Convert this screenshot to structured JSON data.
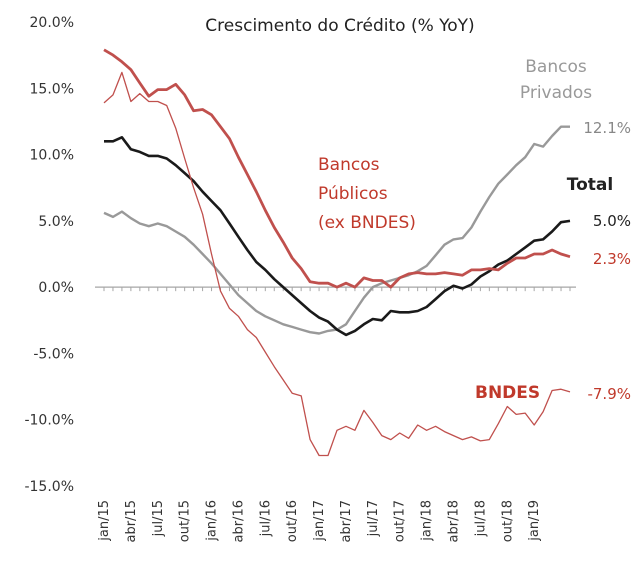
{
  "chart_data": {
    "type": "line",
    "title": "Crescimento do Crédito (% YoY)",
    "xlabel": "",
    "ylabel": "",
    "ylim": [
      -15,
      20
    ],
    "yticks": [
      20,
      15,
      10,
      5,
      0,
      -5,
      -10,
      -15
    ],
    "ytick_labels": [
      "20.0%",
      "15.0%",
      "10.0%",
      "5.0%",
      "0.0%",
      "-5.0%",
      "-10.0%",
      "-15.0%"
    ],
    "x_tick_labels": [
      "jan/15",
      "abr/15",
      "jul/15",
      "out/15",
      "jan/16",
      "abr/16",
      "jul/16",
      "out/16",
      "jan/17",
      "abr/17",
      "jul/17",
      "out/17",
      "jan/18",
      "abr/18",
      "jul/18",
      "out/18",
      "jan/19"
    ],
    "grid": false,
    "legend": "none",
    "colors": {
      "bancos_privados": "#999999",
      "total": "#1a1a1a",
      "bancos_publicos": "#c0504d",
      "bndes": "#c0504d",
      "annotation_red": "#c0392b"
    },
    "series": [
      {
        "key": "bancos_privados",
        "label_lines": [
          "Bancos",
          "Privados"
        ],
        "end_label": "12.1%",
        "values": [
          5.6,
          5.3,
          5.7,
          5.2,
          4.8,
          4.6,
          4.8,
          4.6,
          4.2,
          3.8,
          3.2,
          2.5,
          1.8,
          1.0,
          0.2,
          -0.6,
          -1.2,
          -1.8,
          -2.2,
          -2.5,
          -2.8,
          -3.0,
          -3.2,
          -3.4,
          -3.5,
          -3.3,
          -3.2,
          -2.8,
          -1.8,
          -0.8,
          0.0,
          0.3,
          0.5,
          0.7,
          0.9,
          1.2,
          1.6,
          2.4,
          3.2,
          3.6,
          3.7,
          4.5,
          5.7,
          6.8,
          7.8,
          8.5,
          9.2,
          9.8,
          10.8,
          10.6,
          11.4,
          12.1,
          12.1
        ]
      },
      {
        "key": "total",
        "label_lines": [
          "Total"
        ],
        "end_label": "5.0%",
        "values": [
          11.0,
          11.0,
          11.3,
          10.4,
          10.2,
          9.9,
          9.9,
          9.7,
          9.2,
          8.6,
          8.0,
          7.2,
          6.5,
          5.8,
          4.8,
          3.8,
          2.8,
          1.9,
          1.3,
          0.6,
          0.0,
          -0.6,
          -1.2,
          -1.8,
          -2.3,
          -2.6,
          -3.2,
          -3.6,
          -3.3,
          -2.8,
          -2.4,
          -2.5,
          -1.8,
          -1.9,
          -1.9,
          -1.8,
          -1.5,
          -0.9,
          -0.3,
          0.1,
          -0.1,
          0.2,
          0.8,
          1.2,
          1.7,
          2.0,
          2.5,
          3.0,
          3.5,
          3.6,
          4.2,
          4.9,
          5.0
        ]
      },
      {
        "key": "bancos_publicos",
        "label_lines": [
          "Bancos",
          "Públicos",
          "(ex BNDES)"
        ],
        "end_label": "2.3%",
        "values": [
          17.9,
          17.5,
          17.0,
          16.4,
          15.4,
          14.4,
          14.9,
          14.9,
          15.3,
          14.5,
          13.3,
          13.4,
          13.0,
          12.1,
          11.2,
          9.8,
          8.5,
          7.2,
          5.8,
          4.5,
          3.4,
          2.2,
          1.4,
          0.4,
          0.3,
          0.3,
          0.0,
          0.3,
          0.0,
          0.7,
          0.5,
          0.5,
          0.0,
          0.7,
          1.0,
          1.1,
          1.0,
          1.0,
          1.1,
          1.0,
          0.9,
          1.3,
          1.3,
          1.4,
          1.3,
          1.8,
          2.2,
          2.2,
          2.5,
          2.5,
          2.8,
          2.5,
          2.3
        ]
      },
      {
        "key": "bndes",
        "label_lines": [
          "BNDES"
        ],
        "end_label": "-7.9%",
        "values": [
          13.9,
          14.5,
          16.2,
          14.0,
          14.6,
          14.0,
          14.0,
          13.7,
          12.0,
          9.7,
          7.5,
          5.5,
          2.5,
          -0.3,
          -1.6,
          -2.2,
          -3.2,
          -3.8,
          -4.9,
          -6.0,
          -7.0,
          -8.0,
          -8.2,
          -11.5,
          -12.7,
          -12.7,
          -10.8,
          -10.5,
          -10.8,
          -9.3,
          -10.2,
          -11.2,
          -11.5,
          -11.0,
          -11.4,
          -10.4,
          -10.8,
          -10.5,
          -10.9,
          -11.2,
          -11.5,
          -11.3,
          -11.6,
          -11.5,
          -10.3,
          -9.0,
          -9.6,
          -9.5,
          -10.4,
          -9.4,
          -7.8,
          -7.7,
          -7.9
        ]
      }
    ]
  }
}
